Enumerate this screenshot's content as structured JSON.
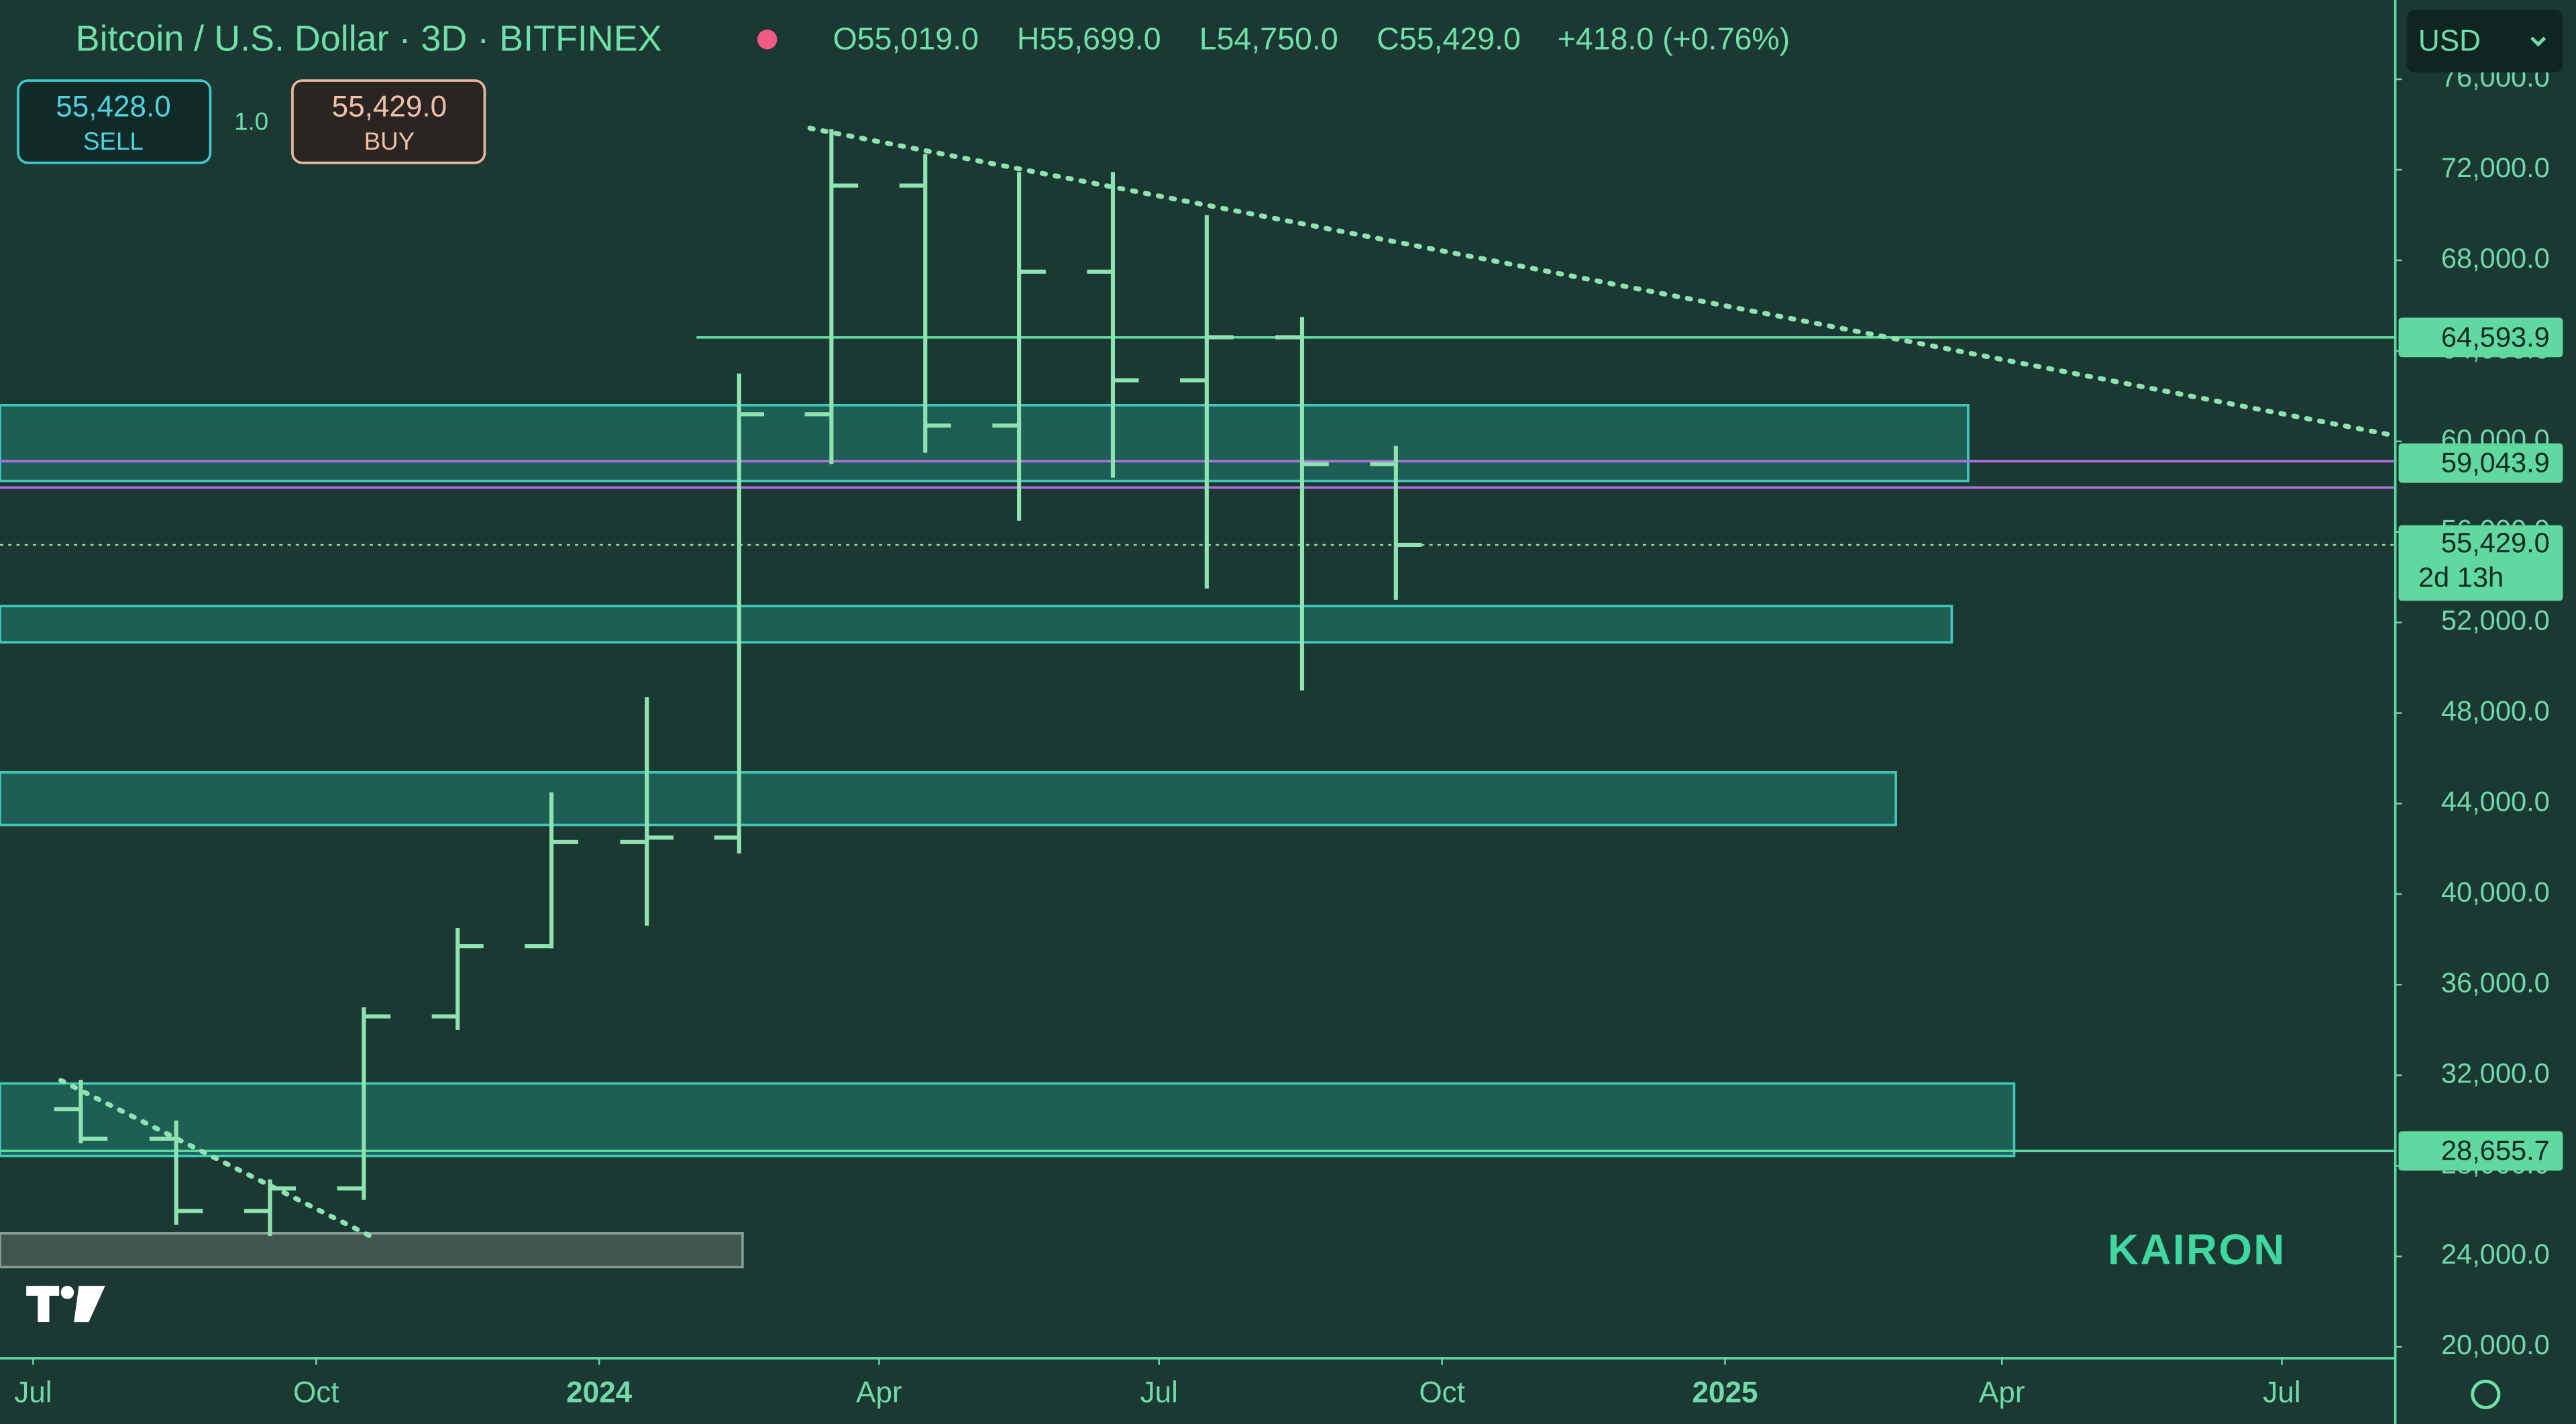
{
  "header": {
    "title": "Bitcoin / U.S. Dollar · 3D · BITFINEX",
    "open": "O55,019.0",
    "high": "H55,699.0",
    "low": "L54,750.0",
    "close": "C55,429.0",
    "change": "+418.0 (+0.76%)"
  },
  "trade": {
    "sell_price": "55,428.0",
    "sell": "SELL",
    "qty": "1.0",
    "buy_price": "55,429.0",
    "buy": "BUY"
  },
  "currency": "USD",
  "watermark": "KAIRON",
  "chart_data": {
    "type": "ohlc",
    "color": "#8fe3b0",
    "x": [
      "2023-07",
      "2023-08",
      "2023-09",
      "2023-10",
      "2023-11",
      "2023-12",
      "2024-01",
      "2024-02",
      "2024-03",
      "2024-04",
      "2024-05",
      "2024-06",
      "2024-07",
      "2024-08",
      "2024-09"
    ],
    "open": [
      30500,
      29200,
      26000,
      27000,
      34600,
      37700,
      42300,
      42500,
      61200,
      71300,
      60700,
      67500,
      62700,
      64600,
      59000
    ],
    "high": [
      31800,
      30000,
      27400,
      35000,
      38500,
      44500,
      48700,
      63000,
      73800,
      72700,
      71900,
      71900,
      70000,
      65500,
      59800
    ],
    "low": [
      29000,
      25400,
      24900,
      26500,
      34000,
      37600,
      38600,
      41800,
      59000,
      59500,
      56500,
      58400,
      53500,
      49000,
      53000
    ],
    "close": [
      29200,
      26000,
      27000,
      34600,
      37700,
      42300,
      42500,
      61200,
      71300,
      60700,
      67500,
      62700,
      64600,
      59000,
      55429
    ],
    "xlim": [
      "2023-06",
      "2025-08"
    ],
    "xticks": [
      {
        "value": "2023-07",
        "label": "Jul"
      },
      {
        "value": "2023-10",
        "label": "Oct"
      },
      {
        "value": "2024-01",
        "label": "2024"
      },
      {
        "value": "2024-04",
        "label": "Apr"
      },
      {
        "value": "2024-07",
        "label": "Jul"
      },
      {
        "value": "2024-10",
        "label": "Oct"
      },
      {
        "value": "2025-01",
        "label": "2025"
      },
      {
        "value": "2025-04",
        "label": "Apr"
      },
      {
        "value": "2025-07",
        "label": "Jul"
      }
    ],
    "ylim": [
      19500,
      79500
    ],
    "yticks": [
      {
        "value": 20000,
        "label": "20,000.0"
      },
      {
        "value": 24000,
        "label": "24,000.0"
      },
      {
        "value": 28000,
        "label": "28,000.0"
      },
      {
        "value": 32000,
        "label": "32,000.0"
      },
      {
        "value": 36000,
        "label": "36,000.0"
      },
      {
        "value": 40000,
        "label": "40,000.0"
      },
      {
        "value": 44000,
        "label": "44,000.0"
      },
      {
        "value": 48000,
        "label": "48,000.0"
      },
      {
        "value": 52000,
        "label": "52,000.0"
      },
      {
        "value": 56000,
        "label": "56,000.0"
      },
      {
        "value": 60000,
        "label": "60,000.0"
      },
      {
        "value": 64000,
        "label": "64,000.0"
      },
      {
        "value": 68000,
        "label": "68,000.0"
      },
      {
        "value": 72000,
        "label": "72,000.0"
      },
      {
        "value": 76000,
        "label": "76,000.0"
      }
    ],
    "zones": [
      {
        "low": 58255,
        "high": 61600,
        "color": "#1f6b62"
      },
      {
        "low": 51127,
        "high": 52727,
        "color": "#1f6b62"
      },
      {
        "low": 43055,
        "high": 45382,
        "color": "#1f6b62"
      },
      {
        "low": 28436,
        "high": 31636,
        "color": "#1f6b62"
      },
      {
        "low": 23527,
        "high": 25018,
        "color": "#4d5f5a"
      }
    ],
    "purple_lines": [
      57964,
      59127
    ],
    "levels": [
      {
        "value": 64593.9,
        "label": "64,593.9"
      },
      {
        "value": 59043.9,
        "label": "59,043.9"
      },
      {
        "value": 28655.7,
        "label": "28,655.7"
      }
    ],
    "last": {
      "value": 55429,
      "label": "55,429.0",
      "countdown": "2d 13h"
    }
  }
}
